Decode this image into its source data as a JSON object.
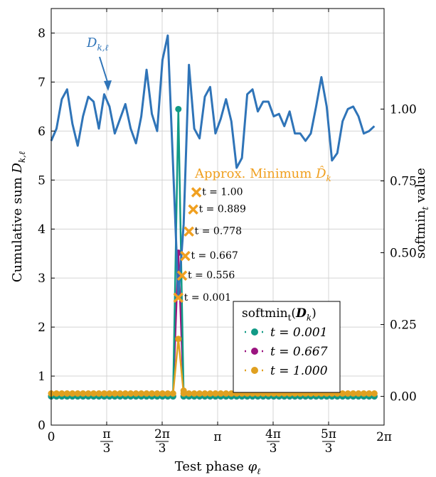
{
  "chart_data": {
    "type": "line",
    "xlabel": "Test phase φℓ",
    "ylabel_left": "Cumulative sum Dk,ℓ",
    "ylabel_right": "softmint value",
    "xlim": [
      0,
      6.2832
    ],
    "ylim": [
      0,
      8.5
    ],
    "ylim_right": [
      -0.1,
      1.35
    ],
    "grid": true,
    "x_ticks": [
      "0",
      "π/3",
      "2π/3",
      "π",
      "4π/3",
      "5π/3",
      "2π"
    ],
    "y_ticks_left": [
      "0",
      "1",
      "2",
      "3",
      "4",
      "5",
      "6",
      "7",
      "8"
    ],
    "y_ticks_right": [
      "0.00",
      "0.25",
      "0.50",
      "0.75",
      "1.00"
    ],
    "colors": {
      "curve": "#2f74b8",
      "approx": "#f0a020",
      "t_0001": "#119a86",
      "t_0667": "#9b1480",
      "t_1000": "#e0a020"
    },
    "series": [
      {
        "name": "Dk,ℓ",
        "x": [
          0,
          0.1,
          0.2,
          0.3,
          0.4,
          0.5,
          0.6,
          0.7,
          0.8,
          0.9,
          1.0,
          1.1,
          1.2,
          1.3,
          1.4,
          1.5,
          1.6,
          1.7,
          1.8,
          1.9,
          2.0,
          2.1,
          2.2,
          2.3,
          2.4,
          2.5,
          2.6,
          2.7,
          2.8,
          2.9,
          3.0,
          3.1,
          3.2,
          3.3,
          3.4,
          3.5,
          3.6,
          3.7,
          3.8,
          3.9,
          4.0,
          4.1,
          4.2,
          4.3,
          4.4,
          4.5,
          4.6,
          4.7,
          4.8,
          4.9,
          5.0,
          5.1,
          5.2,
          5.3,
          5.4,
          5.5,
          5.6,
          5.7,
          5.8,
          5.9,
          6.0,
          6.1
        ],
        "y": [
          5.8,
          6.05,
          6.65,
          6.85,
          6.15,
          5.7,
          6.3,
          6.7,
          6.6,
          6.05,
          6.75,
          6.5,
          5.95,
          6.25,
          6.55,
          6.05,
          5.75,
          6.3,
          7.25,
          6.35,
          6.0,
          7.45,
          7.95,
          5.3,
          2.6,
          4.1,
          7.35,
          6.05,
          5.85,
          6.7,
          6.9,
          5.95,
          6.25,
          6.65,
          6.2,
          5.25,
          5.45,
          6.75,
          6.85,
          6.4,
          6.6,
          6.6,
          6.3,
          6.35,
          6.1,
          6.4,
          5.95,
          5.95,
          5.8,
          5.95,
          6.5,
          7.1,
          6.5,
          5.4,
          5.55,
          6.2,
          6.45,
          6.5,
          6.3,
          5.95,
          6.0,
          6.1
        ]
      }
    ],
    "approx_minimum": {
      "label": "Approx. Minimum D̂k",
      "points": [
        {
          "t_label": "t = 0.001",
          "x": 2.4,
          "y": 2.6
        },
        {
          "t_label": "t = 0.556",
          "x": 2.47,
          "y": 3.05
        },
        {
          "t_label": "t = 0.667",
          "x": 2.53,
          "y": 3.45
        },
        {
          "t_label": "t = 0.778",
          "x": 2.6,
          "y": 3.95
        },
        {
          "t_label": "t = 0.889",
          "x": 2.68,
          "y": 4.4
        },
        {
          "t_label": "t = 1.00",
          "x": 2.74,
          "y": 4.75
        }
      ]
    },
    "softmin_legend": {
      "title": "softmint(Dk)",
      "entries": [
        {
          "label": "t = 0.001",
          "color_key": "t_0001"
        },
        {
          "label": "t = 0.667",
          "color_key": "t_0667"
        },
        {
          "label": "t = 1.000",
          "color_key": "t_1000"
        }
      ]
    },
    "softmin_series": [
      {
        "t": 0.001,
        "peak_x": 2.4,
        "peak_value": 1.0,
        "baseline": 0.0
      },
      {
        "t": 0.667,
        "peak_x": 2.4,
        "peak_value": 0.5,
        "baseline": 0.0
      },
      {
        "t": 1.0,
        "peak_x": 2.4,
        "peak_value": 0.2,
        "baseline": 0.01
      }
    ]
  }
}
